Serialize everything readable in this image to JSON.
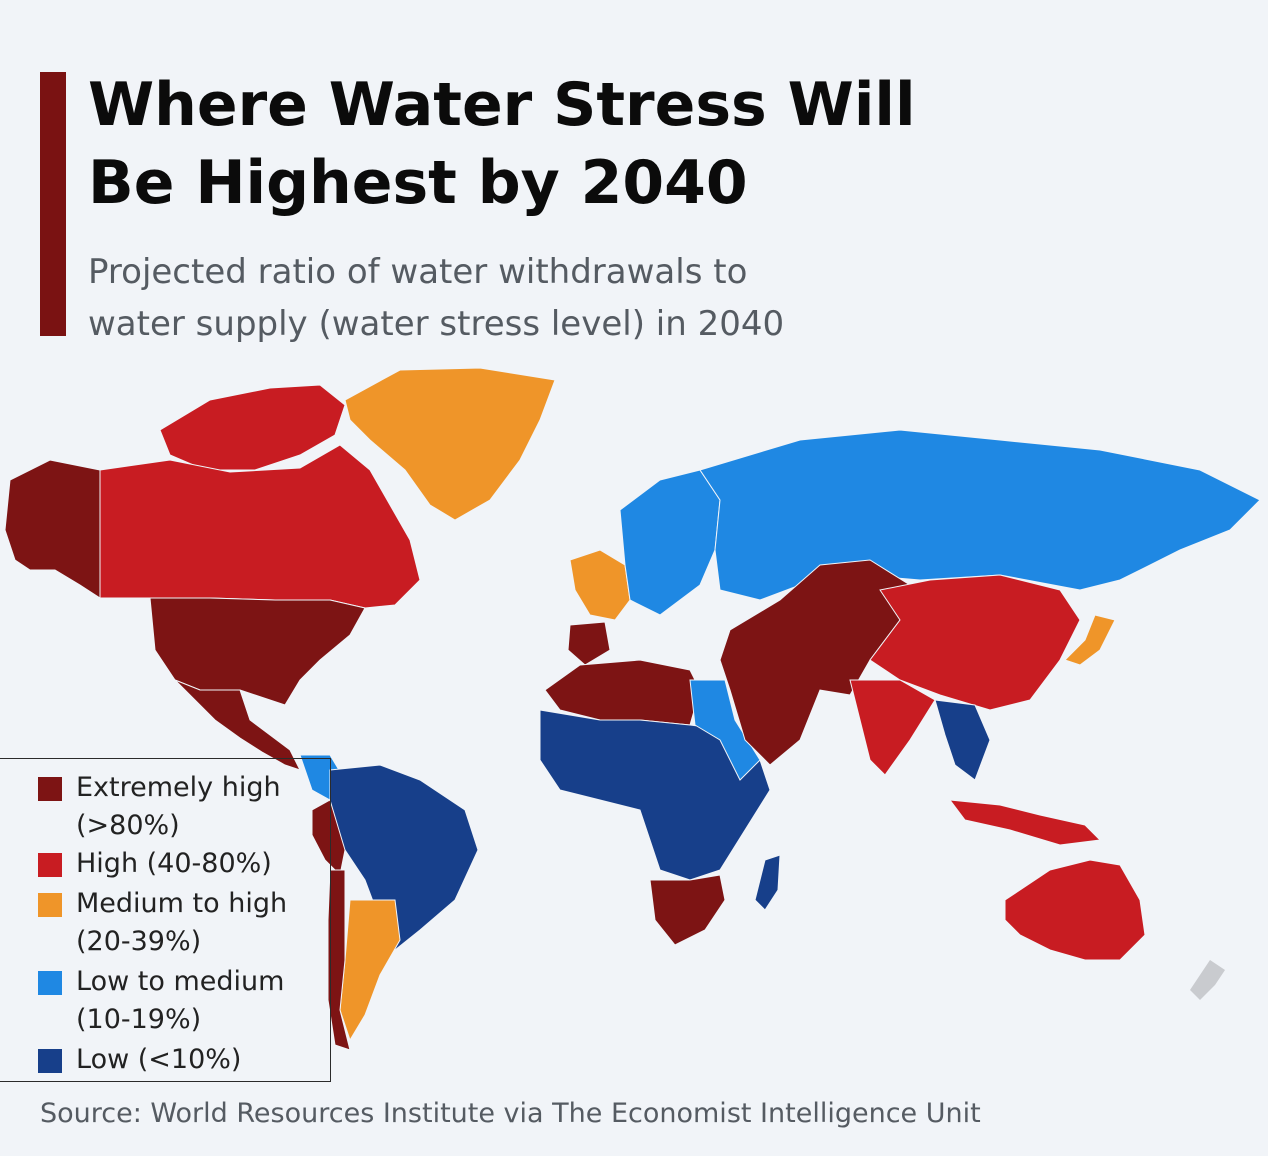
{
  "title_line1": "Where Water Stress Will",
  "title_line2": "Be Highest by 2040",
  "subtitle_line1": "Projected ratio of water withdrawals to",
  "subtitle_line2": "water supply (water stress level) in 2040",
  "accent_color": "#7a1212",
  "legend": [
    {
      "line1": "Extremely high",
      "line2": "(>80%)",
      "color": "#7d1414"
    },
    {
      "line1": "High (40-80%)",
      "line2": "",
      "color": "#c81c22"
    },
    {
      "line1": "Medium to high",
      "line2": "(20-39%)",
      "color": "#ef9529"
    },
    {
      "line1": "Low to medium",
      "line2": "(10-19%)",
      "color": "#1f88e3"
    },
    {
      "line1": "Low (<10%)",
      "line2": "",
      "color": "#173f8a"
    }
  ],
  "source": "Source: World Resources Institute via The Economist Intelligence Unit",
  "regions": [
    {
      "name": "Alaska",
      "level": "High (40-80%)"
    },
    {
      "name": "Canada",
      "level": "Low to medium (10-19%)"
    },
    {
      "name": "Greenland",
      "level": "Low (<10%)"
    },
    {
      "name": "United States",
      "level": "High (40-80%)"
    },
    {
      "name": "Mexico",
      "level": "High (40-80%)"
    },
    {
      "name": "Brazil",
      "level": "Low (<10%)"
    },
    {
      "name": "Argentina",
      "level": "Medium to high (20-39%)"
    },
    {
      "name": "Chile",
      "level": "Extremely high (>80%)"
    },
    {
      "name": "Peru",
      "level": "High (40-80%)"
    },
    {
      "name": "North Africa",
      "level": "Extremely high (>80%)"
    },
    {
      "name": "Middle East",
      "level": "Extremely high (>80%)"
    },
    {
      "name": "Central Africa",
      "level": "Low (<10%)"
    },
    {
      "name": "Southern Africa",
      "level": "High (40-80%)"
    },
    {
      "name": "Russia",
      "level": "Low to medium (10-19%)"
    },
    {
      "name": "Central Asia",
      "level": "Extremely high (>80%)"
    },
    {
      "name": "China",
      "level": "High (40-80%)"
    },
    {
      "name": "India",
      "level": "High (40-80%)"
    },
    {
      "name": "Japan",
      "level": "Medium to high (20-39%)"
    },
    {
      "name": "Australia",
      "level": "High (40-80%)"
    },
    {
      "name": "Madagascar",
      "level": "Low (<10%)"
    },
    {
      "name": "Indonesia",
      "level": "High (40-80%)"
    }
  ]
}
